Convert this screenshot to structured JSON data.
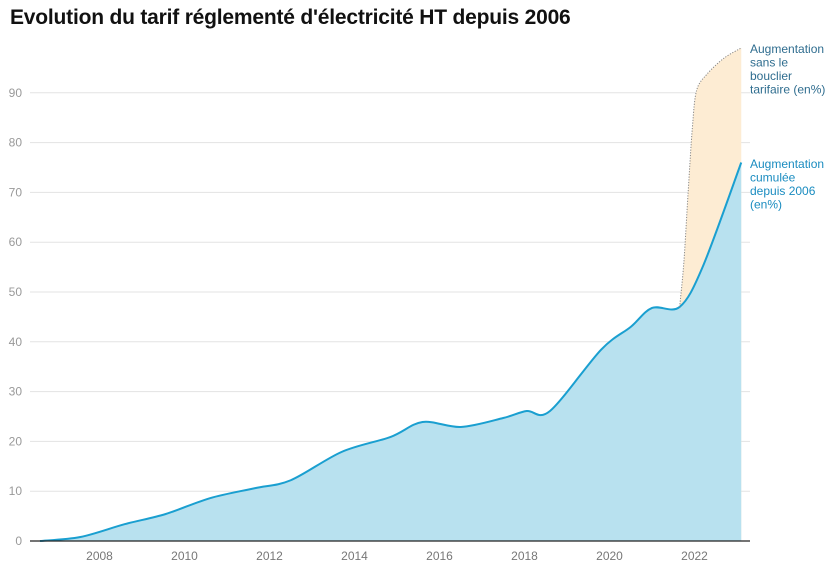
{
  "chart_data": {
    "type": "area",
    "title": "Evolution du tarif réglementé d'électricité HT depuis 2006",
    "xlabel": "",
    "ylabel": "",
    "xlim": [
      2006.6,
      2023.1
    ],
    "ylim": [
      0,
      100
    ],
    "x_ticks": [
      "2008",
      "2010",
      "2012",
      "2014",
      "2016",
      "2018",
      "2020",
      "2022"
    ],
    "y_ticks": [
      "0",
      "10",
      "20",
      "30",
      "40",
      "50",
      "60",
      "70",
      "80",
      "90"
    ],
    "grid": true,
    "series": [
      {
        "name": "Augmentation cumulée depuis 2006 (en%)",
        "color": "#1a9fd0",
        "fill": "#b8e1ef",
        "style": "solid",
        "points": [
          [
            2006.6,
            0
          ],
          [
            2007.55,
            0.8
          ],
          [
            2008.6,
            3.4
          ],
          [
            2009.55,
            5.4
          ],
          [
            2010.6,
            8.6
          ],
          [
            2011.65,
            10.6
          ],
          [
            2012.5,
            12.2
          ],
          [
            2013.7,
            17.9
          ],
          [
            2014.85,
            20.9
          ],
          [
            2015.6,
            23.9
          ],
          [
            2016.5,
            22.9
          ],
          [
            2017.5,
            24.7
          ],
          [
            2018.05,
            26.1
          ],
          [
            2018.6,
            26.1
          ],
          [
            2019.8,
            38.4
          ],
          [
            2020.5,
            43
          ],
          [
            2021.0,
            46.8
          ],
          [
            2021.65,
            47
          ],
          [
            2022.2,
            55.2
          ],
          [
            2023.1,
            76
          ]
        ]
      },
      {
        "name": "Augmentation sans le bouclier tarifaire (en%)",
        "color": "#888888",
        "fill": "#fdecd3",
        "style": "dotted",
        "points": [
          [
            2021.65,
            47
          ],
          [
            2021.75,
            56
          ],
          [
            2021.85,
            70
          ],
          [
            2021.95,
            83
          ],
          [
            2022.05,
            90.5
          ],
          [
            2022.3,
            93.8
          ],
          [
            2022.7,
            97
          ],
          [
            2023.1,
            99
          ]
        ]
      }
    ],
    "legend": "right, end-of-line labels"
  }
}
